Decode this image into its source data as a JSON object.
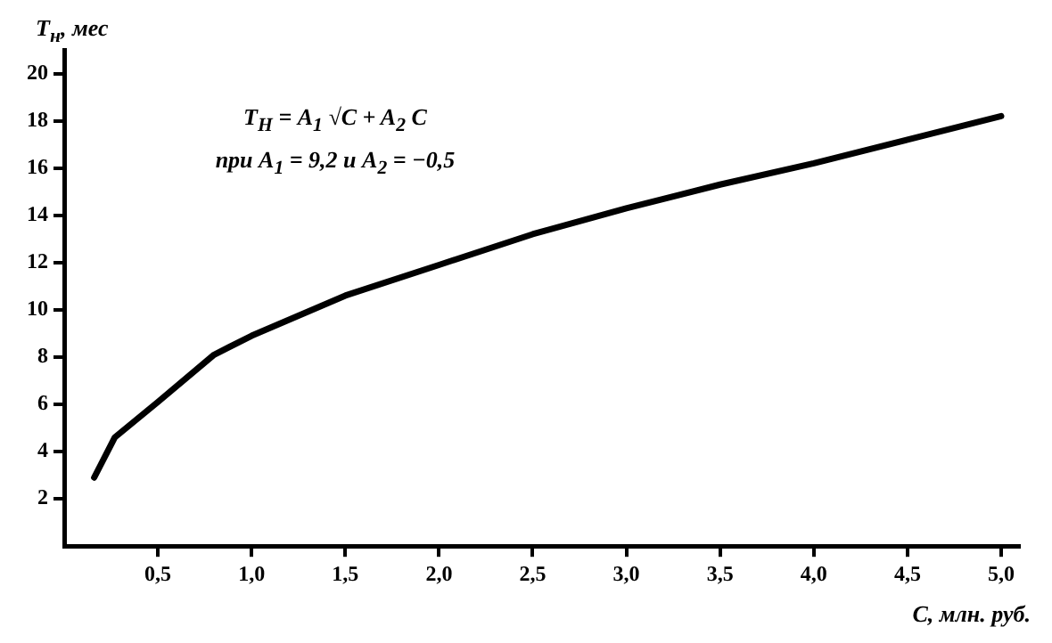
{
  "chart_data": {
    "type": "line",
    "xlabel": "C, млн. руб.",
    "ylabel": "T$_{н}$, мес",
    "annotations": [
      "T$_{Н}$ = A$_{1}$ √C + A$_{2}$ C",
      "при A$_{1}$ = 9,2 и A$_{2}$ = −0,5"
    ],
    "x": [
      0.16,
      0.27,
      0.5,
      0.8,
      1.0,
      1.5,
      2.0,
      2.5,
      3.0,
      3.5,
      4.0,
      4.5,
      5.0
    ],
    "series": [
      {
        "color": "#000000",
        "values": [
          2.9,
          4.6,
          6.1,
          8.1,
          8.9,
          10.6,
          11.9,
          13.2,
          14.3,
          15.3,
          16.2,
          17.2,
          18.2
        ]
      }
    ],
    "xlim": [
      0,
      5.1
    ],
    "ylim": [
      0,
      21
    ],
    "xticks": [
      {
        "value": 0.5,
        "label": "0,5"
      },
      {
        "value": 1.0,
        "label": "1,0"
      },
      {
        "value": 1.5,
        "label": "1,5"
      },
      {
        "value": 2.0,
        "label": "2,0"
      },
      {
        "value": 2.5,
        "label": "2,5"
      },
      {
        "value": 3.0,
        "label": "3,0"
      },
      {
        "value": 3.5,
        "label": "3,5"
      },
      {
        "value": 4.0,
        "label": "4,0"
      },
      {
        "value": 4.5,
        "label": "4,5"
      },
      {
        "value": 5.0,
        "label": "5,0"
      }
    ],
    "yticks": [
      2,
      4,
      6,
      8,
      10,
      12,
      14,
      16,
      18,
      20
    ],
    "grid": false,
    "legend": false,
    "marker": "none",
    "line_style": "solid"
  }
}
